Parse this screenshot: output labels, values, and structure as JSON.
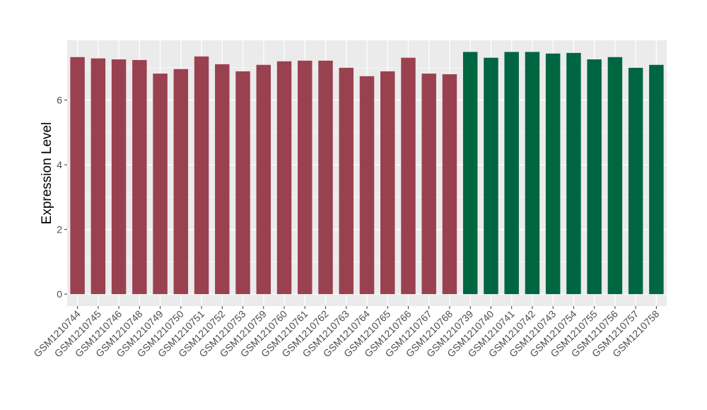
{
  "chart_data": {
    "type": "bar",
    "title": "",
    "xlabel": "",
    "ylabel": "Expression Level",
    "ylim": [
      -0.37,
      7.85
    ],
    "yticks": [
      0,
      2,
      4,
      6
    ],
    "grid": true,
    "colors": {
      "group1": "#9A4150",
      "group2": "#006642",
      "panel": "#EBEBEB"
    },
    "categories": [
      "GSM1210744",
      "GSM1210745",
      "GSM1210746",
      "GSM1210748",
      "GSM1210749",
      "GSM1210750",
      "GSM1210751",
      "GSM1210752",
      "GSM1210753",
      "GSM1210759",
      "GSM1210760",
      "GSM1210761",
      "GSM1210762",
      "GSM1210763",
      "GSM1210764",
      "GSM1210765",
      "GSM1210766",
      "GSM1210767",
      "GSM1210768",
      "GSM1210739",
      "GSM1210740",
      "GSM1210741",
      "GSM1210742",
      "GSM1210743",
      "GSM1210754",
      "GSM1210755",
      "GSM1210756",
      "GSM1210757",
      "GSM1210758"
    ],
    "values": [
      7.33,
      7.29,
      7.26,
      7.24,
      6.82,
      6.96,
      7.35,
      7.11,
      6.89,
      7.09,
      7.2,
      7.22,
      7.22,
      7.0,
      6.74,
      6.89,
      7.31,
      6.82,
      6.8,
      7.49,
      7.31,
      7.49,
      7.49,
      7.44,
      7.46,
      7.26,
      7.33,
      7.0,
      7.09
    ],
    "groups": [
      1,
      1,
      1,
      1,
      1,
      1,
      1,
      1,
      1,
      1,
      1,
      1,
      1,
      1,
      1,
      1,
      1,
      1,
      1,
      2,
      2,
      2,
      2,
      2,
      2,
      2,
      2,
      2,
      2
    ]
  }
}
